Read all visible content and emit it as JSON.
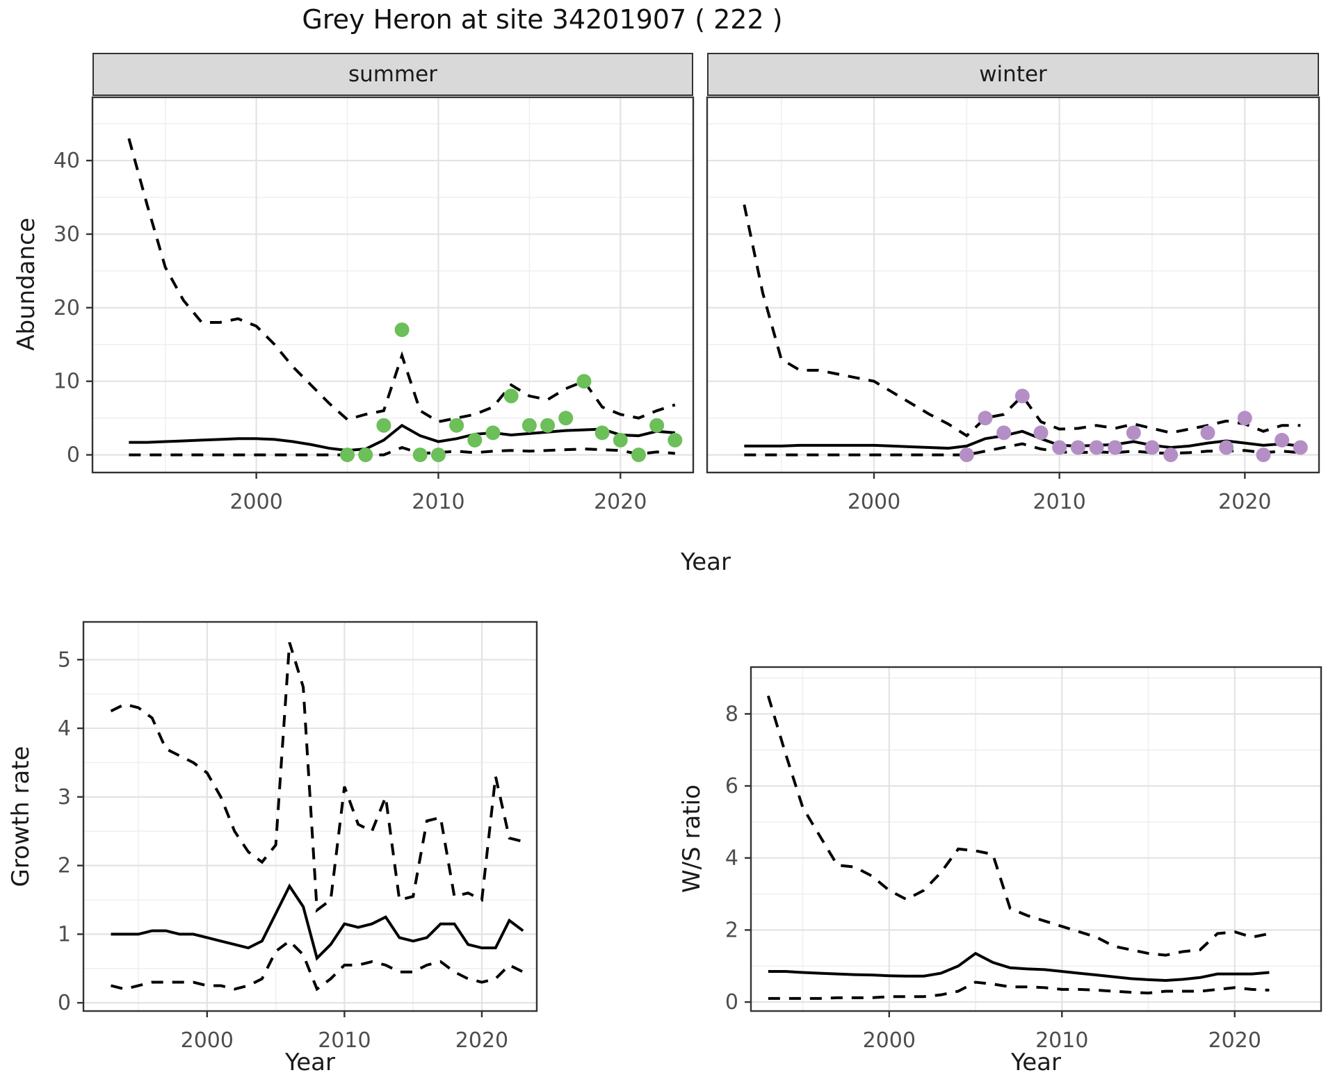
{
  "title": "Grey Heron at site 34201907 ( 222 )",
  "colors": {
    "summer_point": "#6cbf59",
    "winter_point": "#b48fc6",
    "line": "#000000",
    "strip_background": "#d9d9d9",
    "grid_major": "#e3e3e3",
    "grid_minor": "#efefef",
    "panel_border": "#333333",
    "axis_tick_text": "#4d4d4d"
  },
  "chart_data": [
    {
      "id": "abundance-summer",
      "type": "line",
      "facet_label": "summer",
      "xlabel": "Year",
      "ylabel": "Abundance",
      "x": [
        1993,
        1994,
        1995,
        1996,
        1997,
        1998,
        1999,
        2000,
        2001,
        2002,
        2003,
        2004,
        2005,
        2006,
        2007,
        2008,
        2009,
        2010,
        2011,
        2012,
        2013,
        2014,
        2015,
        2016,
        2017,
        2018,
        2019,
        2020,
        2021,
        2022,
        2023
      ],
      "series": [
        {
          "name": "upper 95% CI",
          "style": "dashed",
          "values": [
            43,
            34,
            25.5,
            21,
            18,
            18,
            18.5,
            17.5,
            15,
            12,
            9.5,
            7,
            4.8,
            5.5,
            6,
            13.5,
            6,
            4.5,
            5,
            5.5,
            6.5,
            9.5,
            8,
            7.5,
            9,
            10,
            6.5,
            5.5,
            5,
            6,
            6.8
          ]
        },
        {
          "name": "median",
          "style": "solid",
          "values": [
            1.7,
            1.7,
            1.8,
            1.9,
            2.0,
            2.1,
            2.2,
            2.2,
            2.1,
            1.8,
            1.4,
            0.9,
            0.6,
            0.8,
            2.0,
            4.0,
            2.6,
            1.8,
            2.2,
            2.8,
            3.0,
            2.7,
            2.9,
            3.1,
            3.3,
            3.4,
            3.5,
            2.7,
            2.6,
            3.2,
            3.0
          ]
        },
        {
          "name": "lower 95% CI",
          "style": "dashed",
          "values": [
            0,
            0,
            0,
            0,
            0,
            0,
            0,
            0,
            0,
            0,
            0,
            0,
            0,
            0,
            0,
            1.0,
            0.2,
            0.3,
            0.5,
            0.3,
            0.5,
            0.6,
            0.5,
            0.6,
            0.7,
            0.8,
            0.7,
            0.6,
            0.1,
            0.4,
            0.2
          ]
        }
      ],
      "points": {
        "name": "observed summer counts",
        "color": "#6cbf59",
        "x": [
          2005,
          2006,
          2007,
          2008,
          2009,
          2010,
          2011,
          2012,
          2013,
          2014,
          2015,
          2016,
          2017,
          2018,
          2019,
          2020,
          2021,
          2022,
          2023
        ],
        "y": [
          0,
          0,
          4,
          17,
          0,
          0,
          4,
          2,
          3,
          8,
          4,
          4,
          5,
          10,
          3,
          2,
          0,
          4,
          2
        ]
      },
      "xlim": [
        1991,
        2024
      ],
      "ylim": [
        -2.4,
        48.6
      ],
      "xticks": [
        2000,
        2010,
        2020
      ],
      "xticks_minor": [
        1995,
        2005,
        2015
      ],
      "yticks": [
        0,
        10,
        20,
        30,
        40
      ],
      "yticks_minor": [
        5,
        15,
        25,
        35,
        45
      ],
      "grid": true,
      "legend": "none"
    },
    {
      "id": "abundance-winter",
      "type": "line",
      "facet_label": "winter",
      "xlabel": "Year",
      "ylabel": "Abundance",
      "x": [
        1993,
        1994,
        1995,
        1996,
        1997,
        1998,
        1999,
        2000,
        2001,
        2002,
        2003,
        2004,
        2005,
        2006,
        2007,
        2008,
        2009,
        2010,
        2011,
        2012,
        2013,
        2014,
        2015,
        2016,
        2017,
        2018,
        2019,
        2020,
        2021,
        2022,
        2023
      ],
      "series": [
        {
          "name": "upper 95% CI",
          "style": "dashed",
          "values": [
            34,
            22,
            13,
            11.5,
            11.5,
            11,
            10.5,
            10,
            8.5,
            7,
            5.5,
            4.2,
            2.6,
            5,
            5.5,
            8,
            4.5,
            3.5,
            3.6,
            4,
            3.6,
            4.2,
            3.6,
            3,
            3.5,
            4,
            4.6,
            4.2,
            3.2,
            4,
            4
          ]
        },
        {
          "name": "median",
          "style": "solid",
          "values": [
            1.2,
            1.2,
            1.2,
            1.3,
            1.3,
            1.3,
            1.3,
            1.3,
            1.2,
            1.1,
            1.0,
            0.9,
            1.2,
            2.2,
            2.6,
            3.2,
            2.2,
            1.3,
            1.2,
            1.3,
            1.4,
            1.8,
            1.3,
            1.0,
            1.2,
            1.6,
            1.9,
            1.6,
            1.3,
            1.5,
            1.2
          ]
        },
        {
          "name": "lower 95% CI",
          "style": "dashed",
          "values": [
            0,
            0,
            0,
            0,
            0,
            0,
            0,
            0,
            0,
            0,
            0,
            0,
            0,
            0.5,
            1,
            1.5,
            0.8,
            0.4,
            0.3,
            0.4,
            0.3,
            0.5,
            0.3,
            0.2,
            0.3,
            0.5,
            0.5,
            0.6,
            0.3,
            0.5,
            0.3
          ]
        }
      ],
      "points": {
        "name": "observed winter counts",
        "color": "#b48fc6",
        "x": [
          2005,
          2006,
          2007,
          2008,
          2009,
          2010,
          2011,
          2012,
          2013,
          2014,
          2015,
          2016,
          2018,
          2019,
          2020,
          2021,
          2022,
          2023
        ],
        "y": [
          0,
          5,
          3,
          8,
          3,
          1,
          1,
          1,
          1,
          3,
          1,
          0,
          3,
          1,
          5,
          0,
          2,
          1
        ]
      },
      "xlim": [
        1991,
        2024
      ],
      "ylim": [
        -2.4,
        48.6
      ],
      "xticks": [
        2000,
        2010,
        2020
      ],
      "xticks_minor": [
        1995,
        2005,
        2015
      ],
      "yticks": [
        0,
        10,
        20,
        30,
        40
      ],
      "yticks_minor": [
        5,
        15,
        25,
        35,
        45
      ],
      "grid": true,
      "legend": "none"
    },
    {
      "id": "growth-rate",
      "type": "line",
      "facet_label": null,
      "xlabel": "Year",
      "ylabel": "Growth rate",
      "x": [
        1993,
        1994,
        1995,
        1996,
        1997,
        1998,
        1999,
        2000,
        2001,
        2002,
        2003,
        2004,
        2005,
        2006,
        2007,
        2008,
        2009,
        2010,
        2011,
        2012,
        2013,
        2014,
        2015,
        2016,
        2017,
        2018,
        2019,
        2020,
        2021,
        2022,
        2023
      ],
      "series": [
        {
          "name": "upper 95% CI",
          "style": "dashed",
          "values": [
            4.25,
            4.35,
            4.3,
            4.15,
            3.7,
            3.6,
            3.5,
            3.35,
            3.0,
            2.5,
            2.2,
            2.05,
            2.3,
            5.25,
            4.6,
            1.35,
            1.5,
            3.15,
            2.6,
            2.5,
            3.0,
            1.5,
            1.55,
            2.65,
            2.7,
            1.55,
            1.6,
            1.5,
            3.3,
            2.4,
            2.35
          ]
        },
        {
          "name": "median",
          "style": "solid",
          "values": [
            1.0,
            1.0,
            1.0,
            1.05,
            1.05,
            1.0,
            1.0,
            0.95,
            0.9,
            0.85,
            0.8,
            0.9,
            1.3,
            1.7,
            1.4,
            0.65,
            0.85,
            1.15,
            1.1,
            1.15,
            1.25,
            0.95,
            0.9,
            0.95,
            1.15,
            1.15,
            0.85,
            0.8,
            0.8,
            1.2,
            1.05
          ]
        },
        {
          "name": "lower 95% CI",
          "style": "dashed",
          "values": [
            0.25,
            0.2,
            0.25,
            0.3,
            0.3,
            0.3,
            0.3,
            0.25,
            0.25,
            0.2,
            0.25,
            0.35,
            0.75,
            0.9,
            0.7,
            0.2,
            0.35,
            0.55,
            0.55,
            0.6,
            0.55,
            0.45,
            0.45,
            0.55,
            0.6,
            0.45,
            0.35,
            0.3,
            0.35,
            0.55,
            0.45
          ]
        }
      ],
      "points": null,
      "xlim": [
        1991,
        2024
      ],
      "ylim": [
        -0.12,
        5.55
      ],
      "xticks": [
        2000,
        2010,
        2020
      ],
      "xticks_minor": [
        1995,
        2005,
        2015
      ],
      "yticks": [
        0,
        1,
        2,
        3,
        4,
        5
      ],
      "yticks_minor": [
        0.5,
        1.5,
        2.5,
        3.5,
        4.5
      ],
      "grid": true,
      "legend": "none"
    },
    {
      "id": "ws-ratio",
      "type": "line",
      "facet_label": null,
      "xlabel": "Year",
      "ylabel": "W/S ratio",
      "x": [
        1993,
        1994,
        1995,
        1996,
        1997,
        1998,
        1999,
        2000,
        2001,
        2002,
        2003,
        2004,
        2005,
        2006,
        2007,
        2008,
        2009,
        2010,
        2011,
        2012,
        2013,
        2014,
        2015,
        2016,
        2017,
        2018,
        2019,
        2020,
        2021,
        2022
      ],
      "series": [
        {
          "name": "upper 95% CI",
          "style": "dashed",
          "values": [
            8.5,
            6.9,
            5.4,
            4.6,
            3.8,
            3.75,
            3.5,
            3.1,
            2.85,
            3.1,
            3.6,
            4.25,
            4.2,
            4.1,
            2.6,
            2.4,
            2.25,
            2.1,
            1.95,
            1.8,
            1.55,
            1.45,
            1.35,
            1.3,
            1.4,
            1.45,
            1.9,
            1.95,
            1.8,
            1.9
          ]
        },
        {
          "name": "median",
          "style": "solid",
          "values": [
            0.85,
            0.85,
            0.82,
            0.8,
            0.78,
            0.76,
            0.75,
            0.73,
            0.72,
            0.72,
            0.8,
            1.0,
            1.35,
            1.1,
            0.95,
            0.92,
            0.9,
            0.85,
            0.8,
            0.75,
            0.7,
            0.65,
            0.62,
            0.6,
            0.63,
            0.68,
            0.78,
            0.78,
            0.78,
            0.82
          ]
        },
        {
          "name": "lower 95% CI",
          "style": "dashed",
          "values": [
            0.1,
            0.1,
            0.1,
            0.1,
            0.12,
            0.12,
            0.12,
            0.15,
            0.15,
            0.15,
            0.2,
            0.3,
            0.55,
            0.5,
            0.42,
            0.42,
            0.4,
            0.35,
            0.35,
            0.33,
            0.3,
            0.27,
            0.25,
            0.3,
            0.3,
            0.3,
            0.35,
            0.4,
            0.35,
            0.33
          ]
        }
      ],
      "points": null,
      "xlim": [
        1992,
        2025
      ],
      "ylim": [
        -0.25,
        9.3
      ],
      "xticks": [
        2000,
        2010,
        2020
      ],
      "xticks_minor": [
        1995,
        2005,
        2015
      ],
      "yticks": [
        0,
        2,
        4,
        6,
        8
      ],
      "yticks_minor": [
        1,
        3,
        5,
        7,
        9
      ],
      "grid": true,
      "legend": "none"
    }
  ]
}
